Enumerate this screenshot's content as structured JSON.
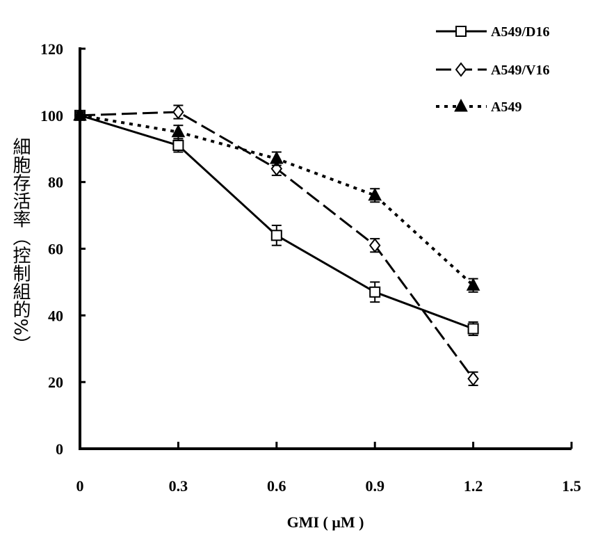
{
  "chart_data": {
    "type": "line",
    "title": "",
    "xlabel": "GMI ( μM )",
    "ylabel": "細胞存活率（控制組的%）",
    "xlim": [
      0,
      1.5
    ],
    "ylim": [
      0,
      120
    ],
    "x_ticks": [
      "0",
      "0.3",
      "0.6",
      "0.9",
      "1.2",
      "1.5"
    ],
    "y_ticks": [
      "0",
      "20",
      "40",
      "60",
      "80",
      "100",
      "120"
    ],
    "legend_position": "top-right",
    "series": [
      {
        "name": "A549/D16",
        "marker": "square",
        "line_style": "solid",
        "x": [
          0,
          0.3,
          0.6,
          0.9,
          1.2
        ],
        "y": [
          100,
          91,
          64,
          47,
          36
        ],
        "error": [
          1,
          2,
          3,
          3,
          2
        ]
      },
      {
        "name": "A549/V16",
        "marker": "diamond",
        "line_style": "dash",
        "x": [
          0,
          0.3,
          0.6,
          0.9,
          1.2
        ],
        "y": [
          100,
          101,
          84,
          61,
          21
        ],
        "error": [
          1,
          2,
          2,
          2,
          2
        ]
      },
      {
        "name": "A549",
        "marker": "triangle",
        "line_style": "dot",
        "x": [
          0,
          0.3,
          0.6,
          0.9,
          1.2
        ],
        "y": [
          100,
          95,
          87,
          76,
          49
        ],
        "error": [
          1,
          2,
          2,
          2,
          2
        ]
      }
    ]
  }
}
